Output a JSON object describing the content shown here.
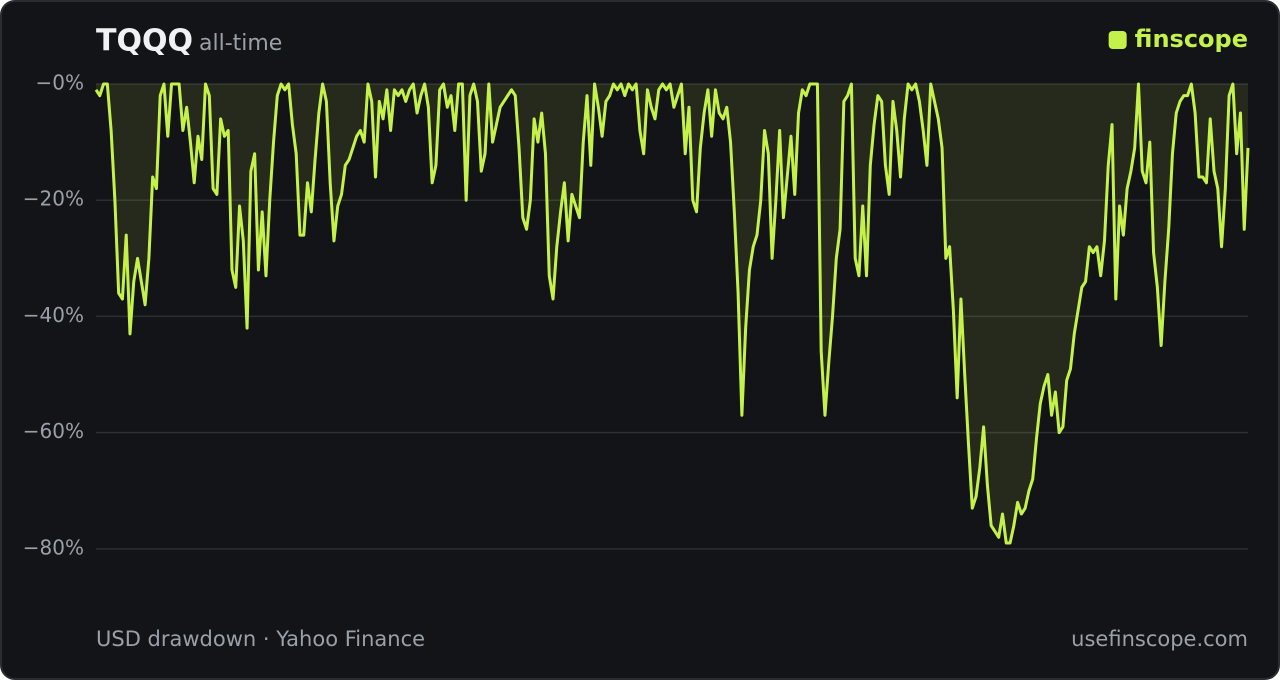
{
  "chart_data": {
    "type": "area-line",
    "title": "TQQQ",
    "subtitle": "all-time",
    "brand": "finscope",
    "footer_left": "USD drawdown · Yahoo Finance",
    "footer_right": "usefinscope.com",
    "color": "#c5f24a",
    "grid": true,
    "ylim": [
      -92,
      0
    ],
    "yticks": [
      {
        "value": 0,
        "label": "−0%"
      },
      {
        "value": -20,
        "label": "−20%"
      },
      {
        "value": -40,
        "label": "−40%"
      },
      {
        "value": -60,
        "label": "−60%"
      },
      {
        "value": -80,
        "label": "−80%"
      }
    ],
    "values": [
      -1,
      -2,
      0,
      0,
      -8,
      -20,
      -36,
      -37,
      -26,
      -43,
      -34,
      -30,
      -34,
      -38,
      -30,
      -16,
      -18,
      -2,
      0,
      -9,
      0,
      0,
      0,
      -8,
      -4,
      -10,
      -17,
      -9,
      -13,
      0,
      -2,
      -18,
      -19,
      -6,
      -9,
      -8,
      -32,
      -35,
      -21,
      -27,
      -42,
      -15,
      -12,
      -32,
      -22,
      -33,
      -20,
      -10,
      -2,
      0,
      -1,
      0,
      -7,
      -12,
      -26,
      -26,
      -17,
      -22,
      -13,
      -5,
      0,
      -3,
      -17,
      -27,
      -21,
      -19,
      -14,
      -13,
      -11,
      -9,
      -8,
      -10,
      0,
      -3,
      -16,
      -3,
      -6,
      -1,
      -8,
      -1,
      -2,
      -1,
      -3,
      -1,
      0,
      -5,
      -2,
      0,
      -4,
      -17,
      -14,
      -1,
      0,
      -4,
      -2,
      -8,
      0,
      0,
      -20,
      -2,
      0,
      -3,
      -15,
      -12,
      0,
      -10,
      -7,
      -4,
      -3,
      -2,
      -1,
      -2,
      -11,
      -23,
      -25,
      -20,
      -6,
      -10,
      -5,
      -12,
      -33,
      -37,
      -28,
      -22,
      -17,
      -27,
      -19,
      -21,
      -23,
      -10,
      -2,
      -14,
      0,
      -4,
      -9,
      -3,
      -2,
      0,
      -1,
      0,
      -2,
      0,
      -1,
      0,
      -8,
      -12,
      -1,
      -4,
      -6,
      -1,
      0,
      -1,
      0,
      -4,
      -2,
      0,
      -12,
      -4,
      -20,
      -22,
      -11,
      -5,
      -1,
      -9,
      -1,
      -5,
      -6,
      -4,
      -10,
      -22,
      -36,
      -57,
      -42,
      -32,
      -28,
      -26,
      -20,
      -8,
      -12,
      -30,
      -20,
      -8,
      -23,
      -16,
      -9,
      -19,
      -5,
      -1,
      -2,
      0,
      0,
      0,
      -46,
      -57,
      -48,
      -40,
      -30,
      -25,
      -3,
      -2,
      0,
      -30,
      -33,
      -21,
      -33,
      -14,
      -7,
      -2,
      -3,
      -14,
      -19,
      -3,
      -8,
      -16,
      -6,
      0,
      -1,
      0,
      -3,
      -8,
      -14,
      0,
      -3,
      -6,
      -11,
      -30,
      -28,
      -39,
      -54,
      -37,
      -50,
      -62,
      -73,
      -71,
      -66,
      -59,
      -69,
      -76,
      -77,
      -78,
      -74,
      -79,
      -79,
      -76,
      -72,
      -74,
      -73,
      -70,
      -68,
      -61,
      -55,
      -52,
      -50,
      -57,
      -53,
      -60,
      -59,
      -51,
      -49,
      -43,
      -39,
      -35,
      -34,
      -28,
      -29,
      -28,
      -33,
      -27,
      -14,
      -7,
      -37,
      -21,
      -26,
      -18,
      -15,
      -11,
      0,
      -15,
      -17,
      -10,
      -29,
      -35,
      -45,
      -34,
      -25,
      -12,
      -5,
      -3,
      -2,
      -2,
      0,
      -5,
      -16,
      -16,
      -17,
      -6,
      -15,
      -18,
      -28,
      -18,
      -2,
      0,
      -12,
      -5,
      -25,
      -11
    ]
  }
}
